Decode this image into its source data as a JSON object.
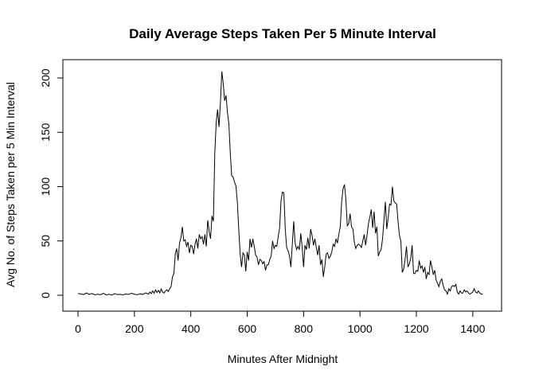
{
  "chart_data": {
    "type": "line",
    "title": "Daily Average Steps Taken Per 5 Minute Interval",
    "xlabel": "Minutes After Midnight",
    "ylabel": "Avg No. of Steps Taken per 5 Min Interval",
    "xlim": [
      0,
      1440
    ],
    "ylim": [
      0,
      210
    ],
    "grid": false,
    "line_color": "#000000",
    "x_ticks": [
      0,
      200,
      400,
      600,
      800,
      1000,
      1200,
      1400
    ],
    "y_ticks": [
      0,
      50,
      100,
      150,
      200
    ],
    "series": [
      {
        "points": [
          [
            0,
            1.7
          ],
          [
            10,
            1.2
          ],
          [
            20,
            0.6
          ],
          [
            30,
            2.1
          ],
          [
            40,
            0.8
          ],
          [
            50,
            1.6
          ],
          [
            60,
            0.4
          ],
          [
            70,
            1.0
          ],
          [
            80,
            0.5
          ],
          [
            90,
            1.8
          ],
          [
            100,
            0.3
          ],
          [
            110,
            0.9
          ],
          [
            120,
            0.2
          ],
          [
            130,
            1.5
          ],
          [
            140,
            0.6
          ],
          [
            150,
            0.8
          ],
          [
            160,
            0.4
          ],
          [
            170,
            1.2
          ],
          [
            180,
            0.7
          ],
          [
            190,
            1.9
          ],
          [
            200,
            0.9
          ],
          [
            210,
            0.5
          ],
          [
            220,
            1.4
          ],
          [
            230,
            0.8
          ],
          [
            240,
            2.2
          ],
          [
            250,
            1.0
          ],
          [
            255,
            3.0
          ],
          [
            260,
            1.5
          ],
          [
            265,
            4.0
          ],
          [
            270,
            1.8
          ],
          [
            275,
            5.0
          ],
          [
            280,
            2.5
          ],
          [
            285,
            4.5
          ],
          [
            290,
            2.2
          ],
          [
            295,
            5.8
          ],
          [
            300,
            3.0
          ],
          [
            305,
            2.0
          ],
          [
            310,
            4.0
          ],
          [
            315,
            5.0
          ],
          [
            320,
            3.5
          ],
          [
            325,
            6.0
          ],
          [
            330,
            8.0
          ],
          [
            335,
            17.0
          ],
          [
            340,
            20.0
          ],
          [
            345,
            38.0
          ],
          [
            350,
            43.0
          ],
          [
            355,
            32.0
          ],
          [
            360,
            48.0
          ],
          [
            365,
            53.0
          ],
          [
            370,
            63.0
          ],
          [
            375,
            50.0
          ],
          [
            380,
            51.0
          ],
          [
            385,
            45.0
          ],
          [
            390,
            49.0
          ],
          [
            395,
            39.0
          ],
          [
            400,
            46.0
          ],
          [
            405,
            45.0
          ],
          [
            410,
            38.0
          ],
          [
            415,
            47.0
          ],
          [
            420,
            52.0
          ],
          [
            425,
            43.0
          ],
          [
            430,
            56.0
          ],
          [
            435,
            52.0
          ],
          [
            440,
            54.0
          ],
          [
            445,
            47.0
          ],
          [
            450,
            56.0
          ],
          [
            455,
            45.0
          ],
          [
            460,
            69.0
          ],
          [
            465,
            59.0
          ],
          [
            470,
            52.0
          ],
          [
            475,
            73.0
          ],
          [
            480,
            68.0
          ],
          [
            485,
            130.0
          ],
          [
            490,
            159.0
          ],
          [
            495,
            171.0
          ],
          [
            500,
            155.0
          ],
          [
            505,
            177.0
          ],
          [
            510,
            206.0
          ],
          [
            515,
            195.0
          ],
          [
            520,
            179.0
          ],
          [
            525,
            184.0
          ],
          [
            530,
            168.0
          ],
          [
            535,
            158.0
          ],
          [
            540,
            131.0
          ],
          [
            545,
            110.0
          ],
          [
            550,
            109.0
          ],
          [
            555,
            104.0
          ],
          [
            560,
            101.0
          ],
          [
            565,
            86.0
          ],
          [
            570,
            61.0
          ],
          [
            575,
            38.0
          ],
          [
            580,
            26.0
          ],
          [
            585,
            39.0
          ],
          [
            590,
            37.0
          ],
          [
            595,
            22.0
          ],
          [
            600,
            40.0
          ],
          [
            605,
            32.0
          ],
          [
            610,
            52.0
          ],
          [
            615,
            44.0
          ],
          [
            620,
            52.0
          ],
          [
            625,
            45.0
          ],
          [
            630,
            37.0
          ],
          [
            635,
            35.0
          ],
          [
            640,
            28.0
          ],
          [
            645,
            33.0
          ],
          [
            650,
            32.0
          ],
          [
            655,
            29.0
          ],
          [
            660,
            31.0
          ],
          [
            665,
            23.0
          ],
          [
            670,
            28.0
          ],
          [
            675,
            28.0
          ],
          [
            680,
            33.0
          ],
          [
            685,
            36.0
          ],
          [
            690,
            50.0
          ],
          [
            695,
            43.0
          ],
          [
            700,
            46.0
          ],
          [
            705,
            45.0
          ],
          [
            710,
            54.0
          ],
          [
            715,
            62.0
          ],
          [
            720,
            87.0
          ],
          [
            725,
            95.0
          ],
          [
            730,
            94.0
          ],
          [
            735,
            61.0
          ],
          [
            740,
            44.0
          ],
          [
            745,
            41.0
          ],
          [
            750,
            36.0
          ],
          [
            755,
            26.0
          ],
          [
            760,
            47.0
          ],
          [
            765,
            68.0
          ],
          [
            770,
            48.0
          ],
          [
            775,
            42.0
          ],
          [
            780,
            45.0
          ],
          [
            785,
            42.0
          ],
          [
            790,
            57.0
          ],
          [
            795,
            44.0
          ],
          [
            800,
            26.0
          ],
          [
            805,
            46.0
          ],
          [
            810,
            42.0
          ],
          [
            815,
            53.0
          ],
          [
            820,
            43.0
          ],
          [
            825,
            61.0
          ],
          [
            830,
            55.0
          ],
          [
            835,
            46.0
          ],
          [
            840,
            52.0
          ],
          [
            845,
            44.0
          ],
          [
            850,
            37.0
          ],
          [
            855,
            46.0
          ],
          [
            860,
            28.0
          ],
          [
            865,
            33.0
          ],
          [
            870,
            17.0
          ],
          [
            875,
            26.0
          ],
          [
            880,
            38.0
          ],
          [
            885,
            39.0
          ],
          [
            890,
            34.0
          ],
          [
            895,
            36.0
          ],
          [
            900,
            40.0
          ],
          [
            905,
            47.0
          ],
          [
            910,
            45.0
          ],
          [
            915,
            52.0
          ],
          [
            920,
            48.0
          ],
          [
            925,
            56.0
          ],
          [
            930,
            63.0
          ],
          [
            935,
            86.0
          ],
          [
            940,
            98.0
          ],
          [
            945,
            102.0
          ],
          [
            950,
            88.0
          ],
          [
            955,
            64.0
          ],
          [
            960,
            66.0
          ],
          [
            965,
            75.0
          ],
          [
            970,
            63.0
          ],
          [
            975,
            61.0
          ],
          [
            980,
            49.0
          ],
          [
            985,
            43.0
          ],
          [
            990,
            46.0
          ],
          [
            995,
            47.0
          ],
          [
            1000,
            46.0
          ],
          [
            1005,
            44.0
          ],
          [
            1010,
            50.0
          ],
          [
            1015,
            56.0
          ],
          [
            1020,
            46.0
          ],
          [
            1025,
            55.0
          ],
          [
            1030,
            66.0
          ],
          [
            1035,
            72.0
          ],
          [
            1040,
            79.0
          ],
          [
            1045,
            62.0
          ],
          [
            1050,
            77.0
          ],
          [
            1055,
            57.0
          ],
          [
            1060,
            63.0
          ],
          [
            1065,
            36.0
          ],
          [
            1070,
            40.0
          ],
          [
            1075,
            42.0
          ],
          [
            1080,
            52.0
          ],
          [
            1085,
            69.0
          ],
          [
            1090,
            86.0
          ],
          [
            1095,
            61.0
          ],
          [
            1100,
            71.0
          ],
          [
            1105,
            84.0
          ],
          [
            1110,
            83.0
          ],
          [
            1115,
            100.0
          ],
          [
            1120,
            87.0
          ],
          [
            1125,
            85.0
          ],
          [
            1130,
            84.0
          ],
          [
            1135,
            68.0
          ],
          [
            1140,
            55.0
          ],
          [
            1145,
            50.0
          ],
          [
            1150,
            21.0
          ],
          [
            1155,
            24.0
          ],
          [
            1160,
            33.0
          ],
          [
            1165,
            45.0
          ],
          [
            1170,
            26.0
          ],
          [
            1175,
            29.0
          ],
          [
            1180,
            34.0
          ],
          [
            1185,
            46.0
          ],
          [
            1190,
            20.0
          ],
          [
            1195,
            20.0
          ],
          [
            1200,
            23.0
          ],
          [
            1205,
            22.0
          ],
          [
            1210,
            32.0
          ],
          [
            1215,
            25.0
          ],
          [
            1220,
            27.0
          ],
          [
            1225,
            21.0
          ],
          [
            1230,
            26.0
          ],
          [
            1235,
            15.0
          ],
          [
            1240,
            21.0
          ],
          [
            1245,
            19.0
          ],
          [
            1250,
            32.0
          ],
          [
            1255,
            26.0
          ],
          [
            1260,
            19.0
          ],
          [
            1265,
            23.0
          ],
          [
            1270,
            14.0
          ],
          [
            1275,
            11.0
          ],
          [
            1280,
            8.0
          ],
          [
            1285,
            13.0
          ],
          [
            1290,
            15.0
          ],
          [
            1295,
            9.0
          ],
          [
            1300,
            5.0
          ],
          [
            1305,
            4.0
          ],
          [
            1310,
            1.0
          ],
          [
            1315,
            6.0
          ],
          [
            1320,
            4.0
          ],
          [
            1325,
            8.0
          ],
          [
            1330,
            9.0
          ],
          [
            1335,
            8.0
          ],
          [
            1340,
            10.0
          ],
          [
            1345,
            3.0
          ],
          [
            1350,
            1.0
          ],
          [
            1355,
            4.0
          ],
          [
            1360,
            2.0
          ],
          [
            1365,
            2.0
          ],
          [
            1370,
            5.0
          ],
          [
            1375,
            3.0
          ],
          [
            1380,
            4.0
          ],
          [
            1385,
            2.0
          ],
          [
            1390,
            1.0
          ],
          [
            1395,
            2.0
          ],
          [
            1400,
            3.0
          ],
          [
            1405,
            6.0
          ],
          [
            1410,
            3.0
          ],
          [
            1415,
            2.0
          ],
          [
            1420,
            4.0
          ],
          [
            1425,
            2.0
          ],
          [
            1430,
            1.0
          ],
          [
            1435,
            1.1
          ]
        ]
      }
    ]
  }
}
